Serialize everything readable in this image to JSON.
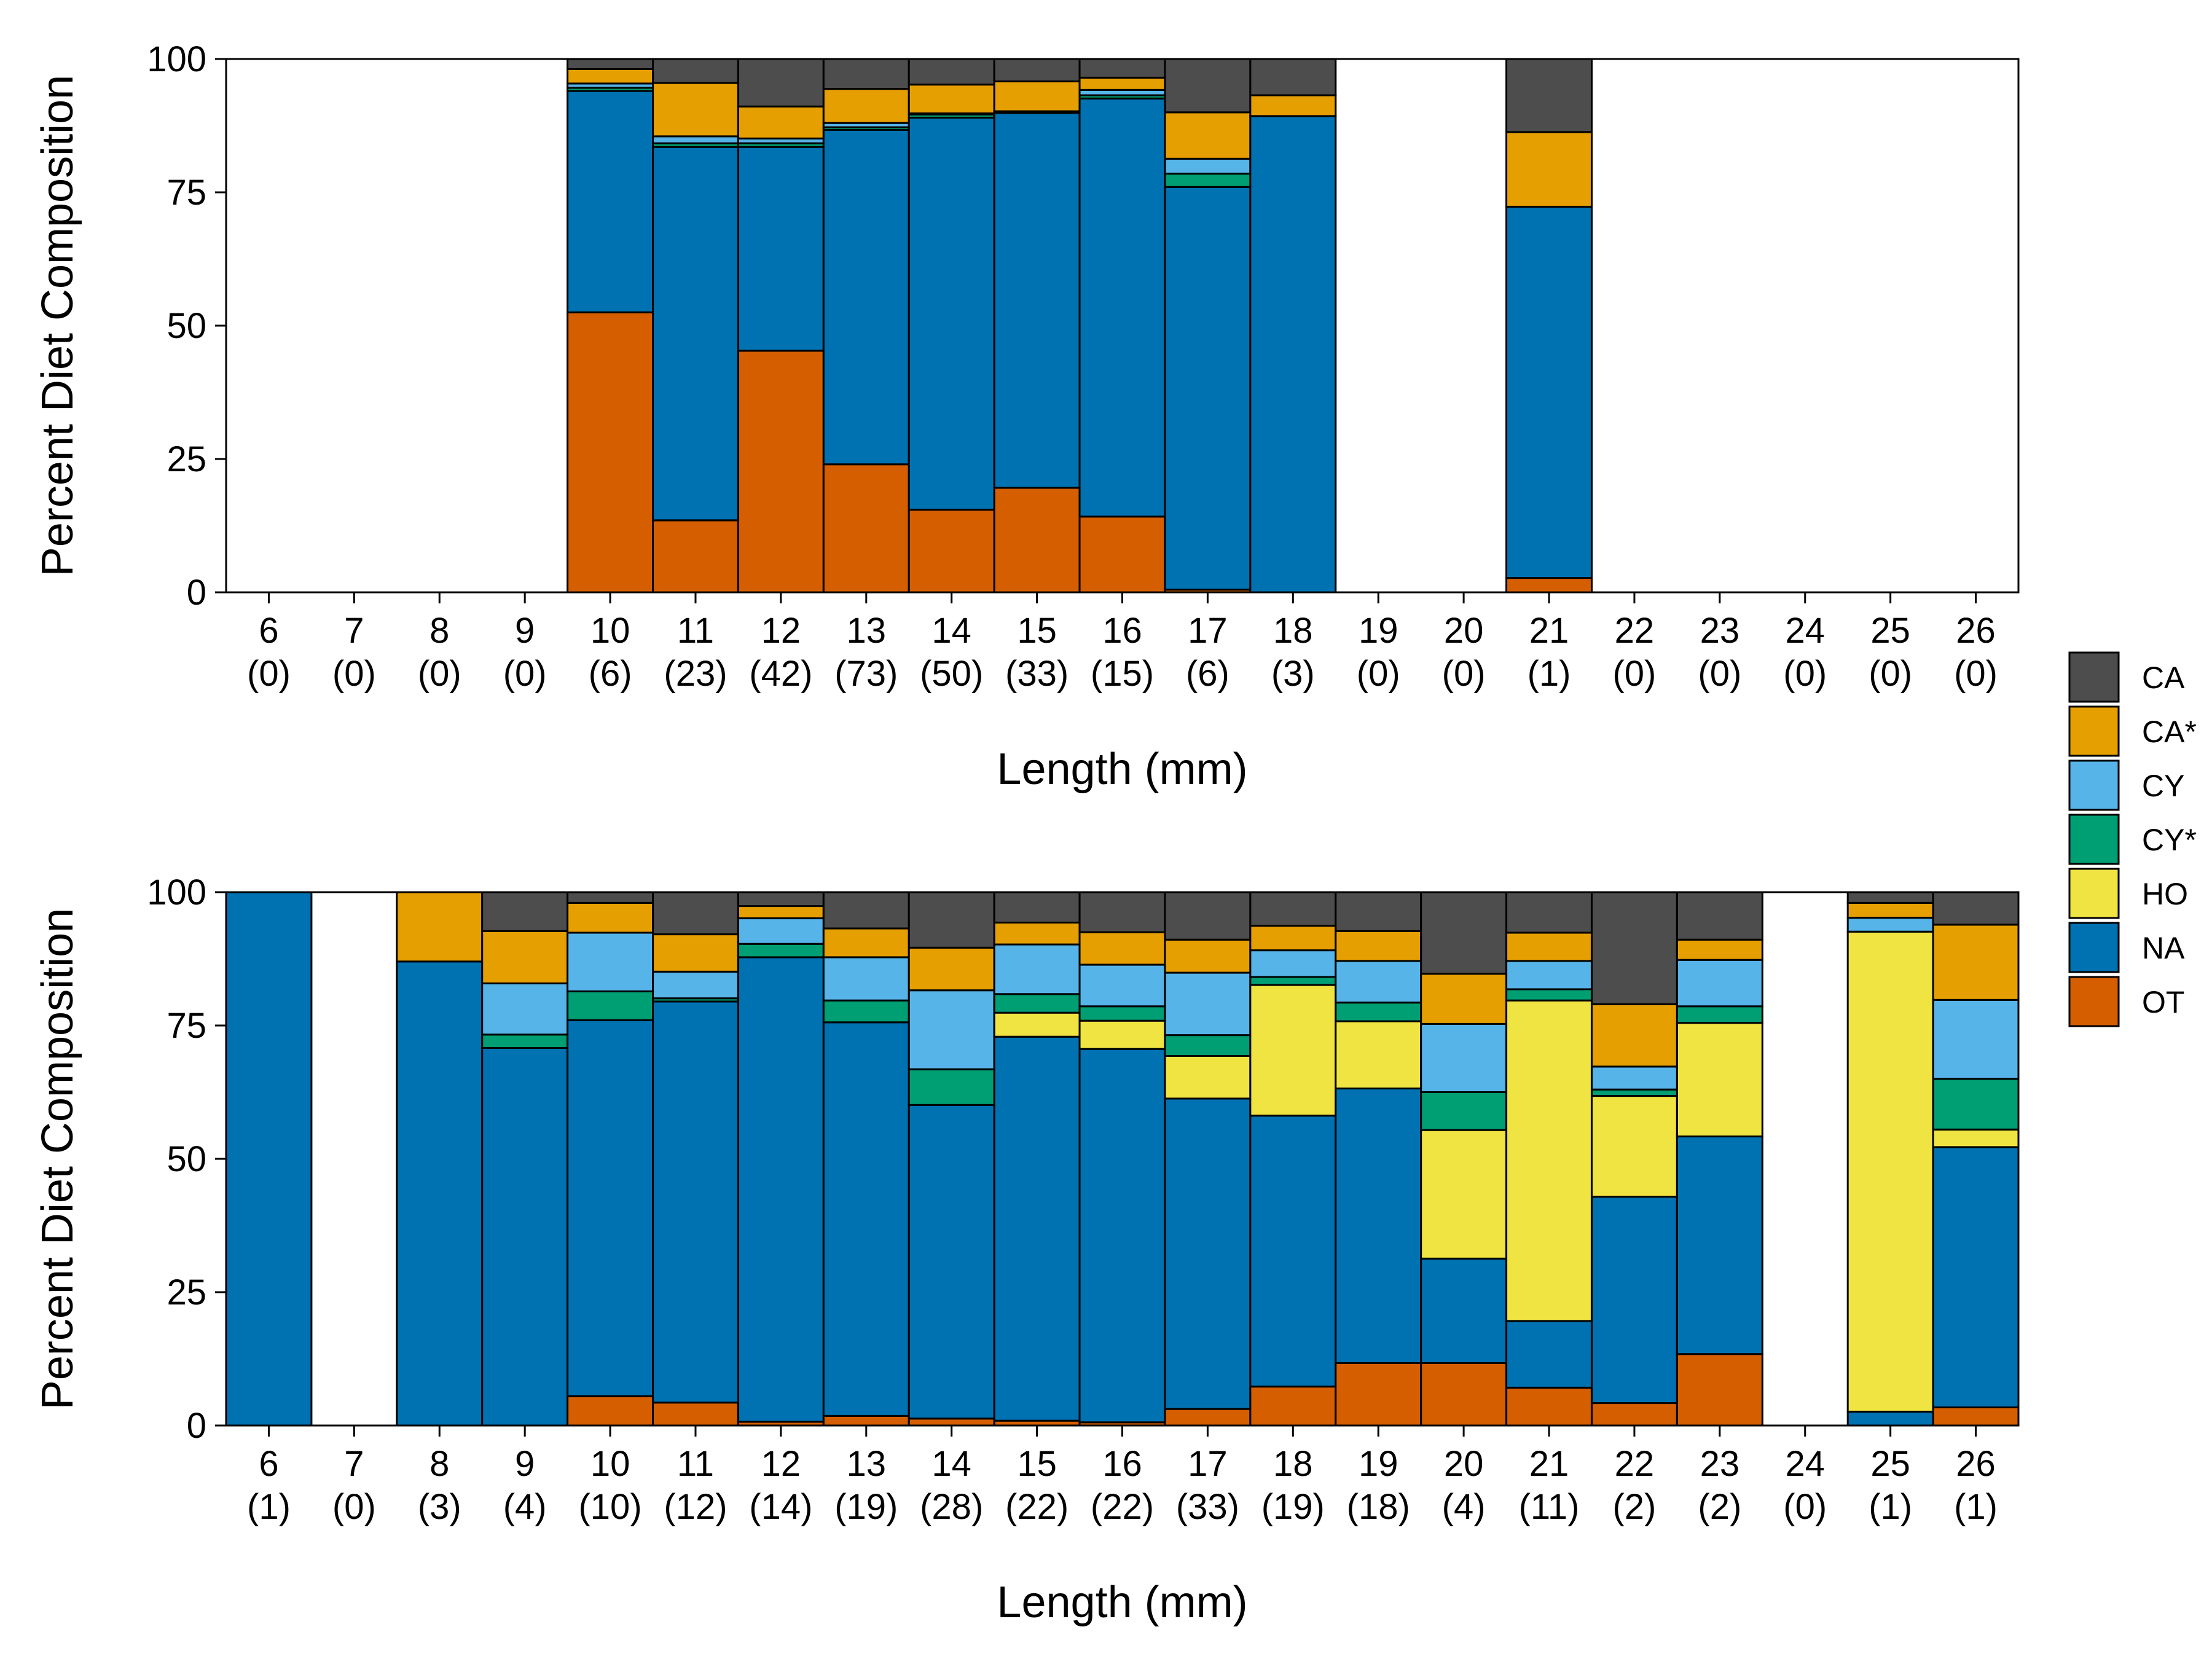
{
  "categories_order": [
    "OT",
    "NA",
    "HO",
    "CY*",
    "CY",
    "CA*",
    "CA"
  ],
  "colors": {
    "CA": "#4d4d4d",
    "CA*": "#e69f00",
    "CY": "#56b4e9",
    "CY*": "#009e73",
    "HO": "#f0e442",
    "NA": "#0072b2",
    "OT": "#d55e00"
  },
  "legend": {
    "entries": [
      {
        "key": "CA",
        "label": "CA"
      },
      {
        "key": "CA*",
        "label": "CA*"
      },
      {
        "key": "CY",
        "label": "CY"
      },
      {
        "key": "CY*",
        "label": "CY*"
      },
      {
        "key": "HO",
        "label": "HO"
      },
      {
        "key": "NA",
        "label": "NA"
      },
      {
        "key": "OT",
        "label": "OT"
      }
    ]
  },
  "chart_data": [
    {
      "type": "bar",
      "stacked": true,
      "ylabel": "Percent Diet Composition",
      "xlabel": "Length (mm)",
      "ylim": [
        0,
        100
      ],
      "yticks": [
        0,
        25,
        50,
        75,
        100
      ],
      "categories": [
        "6",
        "7",
        "8",
        "9",
        "10",
        "11",
        "12",
        "13",
        "14",
        "15",
        "16",
        "17",
        "18",
        "19",
        "20",
        "21",
        "22",
        "23",
        "24",
        "25",
        "26"
      ],
      "counts": [
        "(0)",
        "(0)",
        "(0)",
        "(0)",
        "(6)",
        "(23)",
        "(42)",
        "(73)",
        "(50)",
        "(33)",
        "(15)",
        "(6)",
        "(3)",
        "(0)",
        "(0)",
        "(1)",
        "(0)",
        "(0)",
        "(0)",
        "(0)",
        "(0)"
      ],
      "series": [
        {
          "name": "OT",
          "values": [
            0,
            0,
            0,
            0,
            52.5,
            13.5,
            45.3,
            24,
            15.5,
            19.6,
            14.2,
            0.5,
            0,
            0,
            0,
            2.7,
            0,
            0,
            0,
            0,
            0
          ]
        },
        {
          "name": "NA",
          "values": [
            0,
            0,
            0,
            0,
            41.5,
            70,
            38.2,
            62.7,
            73.5,
            70.3,
            78.4,
            75.5,
            89.3,
            0,
            0,
            69.6,
            0,
            0,
            0,
            0,
            0
          ]
        },
        {
          "name": "HO",
          "values": [
            0,
            0,
            0,
            0,
            0,
            0,
            0,
            0,
            0,
            0,
            0,
            0,
            0,
            0,
            0,
            0,
            0,
            0,
            0,
            0,
            0
          ]
        },
        {
          "name": "CY*",
          "values": [
            0,
            0,
            0,
            0,
            0.6,
            0.7,
            0.7,
            0.5,
            0.6,
            0.3,
            0.6,
            2.5,
            0,
            0,
            0,
            0,
            0,
            0,
            0,
            0,
            0
          ]
        },
        {
          "name": "CY",
          "values": [
            0,
            0,
            0,
            0,
            0.8,
            1.3,
            0.9,
            0.8,
            0.2,
            0,
            1,
            2.8,
            0,
            0,
            0,
            0,
            0,
            0,
            0,
            0,
            0
          ]
        },
        {
          "name": "CA*",
          "values": [
            0,
            0,
            0,
            0,
            2.7,
            10,
            6,
            6.4,
            5.4,
            5.6,
            2.3,
            8.7,
            3.9,
            0,
            0,
            14,
            0,
            0,
            0,
            0,
            0
          ]
        },
        {
          "name": "CA",
          "values": [
            0,
            0,
            0,
            0,
            1.9,
            4.5,
            8.9,
            5.6,
            4.8,
            4.2,
            3.5,
            10,
            6.8,
            0,
            0,
            13.7,
            0,
            0,
            0,
            0,
            0
          ]
        }
      ]
    },
    {
      "type": "bar",
      "stacked": true,
      "ylabel": "Percent Diet Composition",
      "xlabel": "Length (mm)",
      "ylim": [
        0,
        100
      ],
      "yticks": [
        0,
        25,
        50,
        75,
        100
      ],
      "categories": [
        "6",
        "7",
        "8",
        "9",
        "10",
        "11",
        "12",
        "13",
        "14",
        "15",
        "16",
        "17",
        "18",
        "19",
        "20",
        "21",
        "22",
        "23",
        "24",
        "25",
        "26"
      ],
      "counts": [
        "(1)",
        "(0)",
        "(3)",
        "(4)",
        "(10)",
        "(12)",
        "(14)",
        "(19)",
        "(28)",
        "(22)",
        "(22)",
        "(33)",
        "(19)",
        "(18)",
        "(4)",
        "(11)",
        "(2)",
        "(2)",
        "(0)",
        "(1)",
        "(1)"
      ],
      "series": [
        {
          "name": "OT",
          "values": [
            0,
            0,
            0,
            0,
            5.5,
            4.3,
            0.7,
            1.8,
            1.3,
            0.9,
            0.6,
            3.1,
            7.3,
            11.7,
            11.7,
            7.1,
            4.2,
            13.4,
            0,
            0,
            3.4
          ]
        },
        {
          "name": "NA",
          "values": [
            100,
            0,
            87,
            70.8,
            70.5,
            75.2,
            87.1,
            73.8,
            58.8,
            72,
            70,
            58.2,
            50.8,
            51.5,
            19.6,
            12.5,
            38.7,
            40.8,
            0,
            2.6,
            48.8
          ]
        },
        {
          "name": "HO",
          "values": [
            0,
            0,
            0,
            0,
            0,
            0,
            0,
            0,
            0,
            4.5,
            5.3,
            8,
            24.5,
            12.6,
            24.1,
            60.1,
            18.9,
            21.3,
            0,
            90,
            3.3
          ]
        },
        {
          "name": "CY*",
          "values": [
            0,
            0,
            0,
            2.5,
            5.4,
            0.6,
            2.5,
            4.1,
            6.7,
            3.5,
            2.7,
            3.9,
            1.5,
            3.5,
            7.1,
            2.1,
            1.2,
            3.1,
            0,
            0,
            9.5
          ]
        },
        {
          "name": "CY",
          "values": [
            0,
            0,
            0,
            9.6,
            11,
            5,
            4.8,
            8.1,
            14.8,
            9.3,
            7.8,
            11.7,
            5,
            7.8,
            12.8,
            5.3,
            4.3,
            8.7,
            0,
            2.6,
            14.8
          ]
        },
        {
          "name": "CA*",
          "values": [
            0,
            0,
            13,
            9.8,
            5.6,
            7,
            2.3,
            5.4,
            8,
            4.1,
            6.1,
            6.2,
            4.6,
            5.6,
            9.4,
            5.3,
            11.7,
            3.8,
            0,
            2.8,
            14.1
          ]
        },
        {
          "name": "CA",
          "values": [
            0,
            0,
            0,
            7.3,
            2,
            7.9,
            2.6,
            6.8,
            10.4,
            5.7,
            7.5,
            8.9,
            6.3,
            7.3,
            15.3,
            7.6,
            21,
            8.9,
            0,
            2,
            6.1
          ]
        }
      ]
    }
  ]
}
